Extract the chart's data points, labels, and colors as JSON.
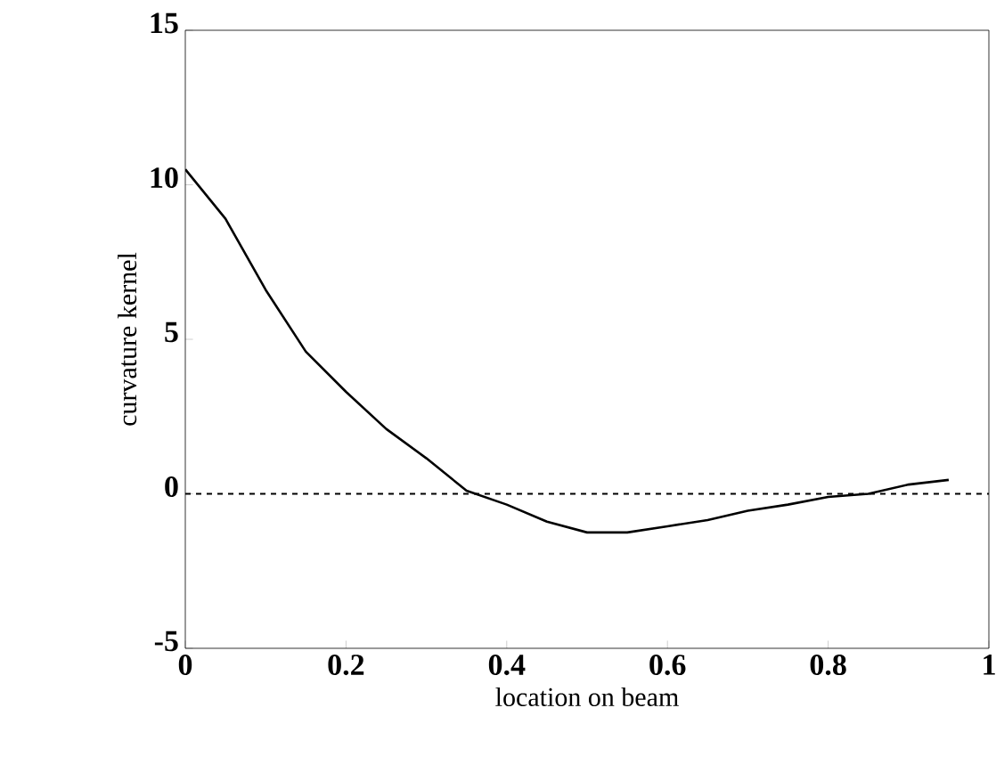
{
  "chart_data": {
    "type": "line",
    "xlabel": "location on beam",
    "ylabel": "curvature kernel",
    "x": [
      0,
      0.05,
      0.1,
      0.15,
      0.2,
      0.25,
      0.3,
      0.35,
      0.4,
      0.45,
      0.5,
      0.55,
      0.6,
      0.65,
      0.7,
      0.75,
      0.8,
      0.85,
      0.9,
      0.95
    ],
    "series": [
      {
        "color": "#000000",
        "values": [
          10.5,
          8.9,
          6.6,
          4.6,
          3.3,
          2.1,
          1.15,
          0.1,
          -0.35,
          -0.9,
          -1.25,
          -1.25,
          -1.05,
          -0.85,
          -0.55,
          -0.35,
          -0.1,
          0,
          0.3,
          0.45
        ]
      }
    ],
    "xlim": [
      0,
      1
    ],
    "ylim": [
      -5,
      15
    ],
    "xticks": [
      0,
      0.2,
      0.4,
      0.6,
      0.8,
      1
    ],
    "yticks": [
      -5,
      0,
      5,
      10,
      15
    ],
    "ref_lines": [
      {
        "axis": "y",
        "value": 0,
        "line_style": "dashed"
      }
    ],
    "marker": "none",
    "line_style": "solid"
  }
}
